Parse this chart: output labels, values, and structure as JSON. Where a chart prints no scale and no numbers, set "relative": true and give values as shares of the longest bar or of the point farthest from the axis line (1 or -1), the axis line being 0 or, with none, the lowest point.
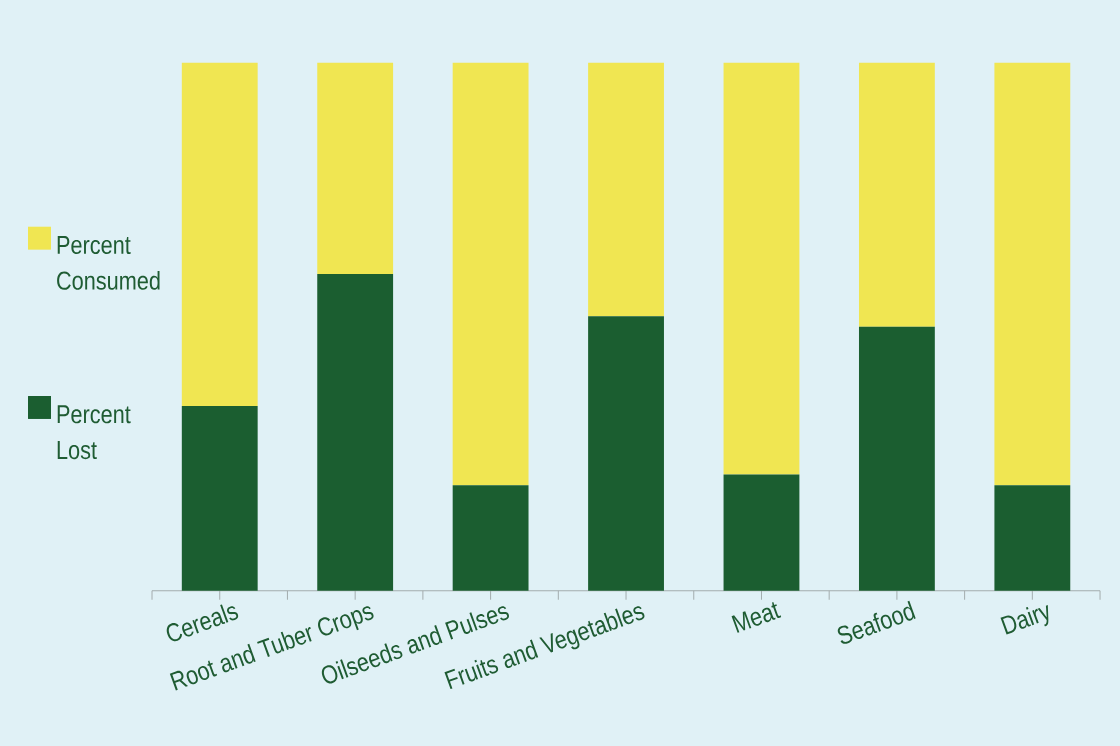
{
  "chart_data": {
    "type": "bar",
    "stacked": true,
    "relative": true,
    "categories": [
      "Cereals",
      "Root and Tuber Crops",
      "Oilseeds and Pulses",
      "Fruits and Vegetables",
      "Meat",
      "Seafood",
      "Dairy"
    ],
    "series": [
      {
        "name": "Percent Lost",
        "color": "#1b5e30",
        "values": [
          0.35,
          0.6,
          0.2,
          0.52,
          0.22,
          0.5,
          0.2
        ]
      },
      {
        "name": "Percent Consumed",
        "color": "#f0e652",
        "values": [
          0.65,
          0.4,
          0.8,
          0.48,
          0.78,
          0.5,
          0.8
        ]
      }
    ],
    "legend": "left"
  }
}
